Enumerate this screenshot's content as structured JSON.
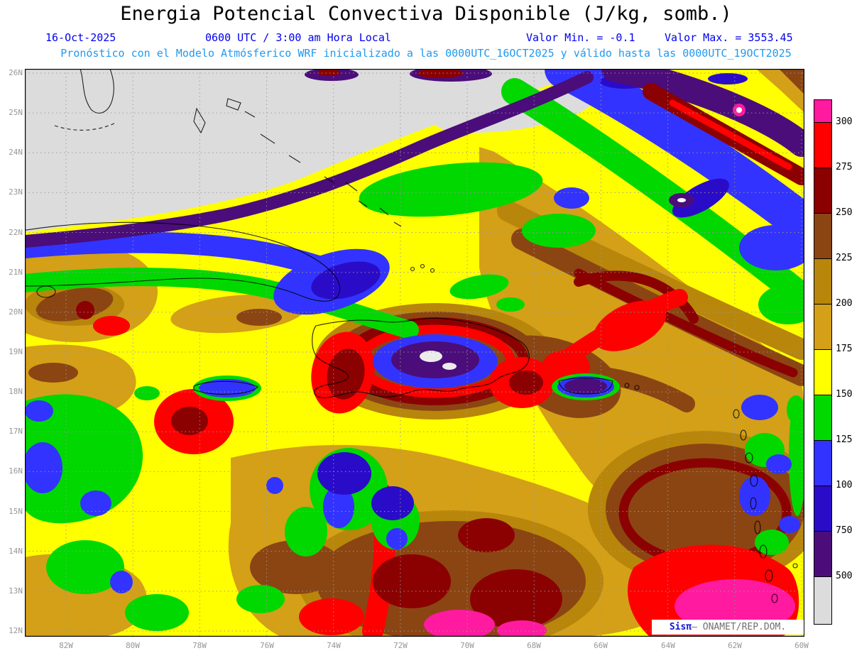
{
  "title": "Energia Potencial Convectiva Disponible (J/kg, somb.)",
  "header": {
    "date": "16-Oct-2025",
    "time": "0600 UTC / 3:00 am Hora Local",
    "min_label": "Valor Min. = -0.1",
    "max_label": "Valor Max. = 3553.45",
    "forecast_line": "Pronóstico con el Modelo Atmósferico WRF inicializado a las 0000UTC_16OCT2025 y válido hasta las 0000UTC_19OCT2025"
  },
  "map": {
    "lat_labels": [
      "26N",
      "25N",
      "24N",
      "23N",
      "22N",
      "21N",
      "20N",
      "19N",
      "18N",
      "17N",
      "16N",
      "15N",
      "14N",
      "13N",
      "12N"
    ],
    "lon_labels": [
      "82W",
      "80W",
      "78W",
      "76W",
      "74W",
      "72W",
      "70W",
      "68W",
      "66W",
      "64W",
      "62W",
      "60W"
    ]
  },
  "legend": {
    "values": [
      "3000",
      "2750",
      "2500",
      "2250",
      "2000",
      "1750",
      "1500",
      "1250",
      "1000",
      "750",
      "500"
    ],
    "colors_top_to_bottom": [
      "#ff1aa0",
      "#fe0000",
      "#8b0000",
      "#8b4513",
      "#b8860b",
      "#d4a017",
      "#ffff00",
      "#00d800",
      "#3333ff",
      "#2a0cc8",
      "#4b0d7a",
      "#dcdcdc"
    ]
  },
  "attribution": {
    "brand": "Sisπ",
    "org": "– ONAMET/REP.DOM."
  },
  "chart_data": {
    "type": "heatmap",
    "title": "Energia Potencial Convectiva Disponible (J/kg, somb.)",
    "units": "J/kg",
    "model": "WRF",
    "init_time": "0000UTC_16OCT2025",
    "valid_until": "0000UTC_19OCT2025",
    "shown_time": "16-Oct-2025 0600 UTC / 3:00 am Hora Local",
    "value_min": -0.1,
    "value_max": 3553.45,
    "lat_range": [
      "12N",
      "26N"
    ],
    "lon_range": [
      "82W",
      "60W"
    ],
    "contour_levels": [
      500,
      750,
      1000,
      1250,
      1500,
      1750,
      2000,
      2250,
      2500,
      2750,
      3000
    ],
    "palette": [
      {
        "range": "<500",
        "color": "#dcdcdc"
      },
      {
        "range": "500-750",
        "color": "#4b0d7a"
      },
      {
        "range": "750-1000",
        "color": "#2a0cc8"
      },
      {
        "range": "1000-1250",
        "color": "#3333ff"
      },
      {
        "range": "1250-1500",
        "color": "#00d800"
      },
      {
        "range": "1500-1750",
        "color": "#ffff00"
      },
      {
        "range": "1750-2000",
        "color": "#d4a017"
      },
      {
        "range": "2000-2250",
        "color": "#b8860b"
      },
      {
        "range": "2250-2500",
        "color": "#8b4513"
      },
      {
        "range": "2500-2750",
        "color": "#8b0000"
      },
      {
        "range": "2750-3000",
        "color": "#fe0000"
      },
      {
        "range": ">3000",
        "color": "#ff1aa0"
      }
    ],
    "features": [
      "CAPE < 500 J/kg (gris) sobre el Atlántico al norte de Cuba, Florida y Bahamas",
      "Franja púrpura/azul (500-1250 J/kg) a lo largo de la costa norte de Cuba y banda diagonal en el Atlántico noreste",
      "Mínimo local púrpura/blanco sobre el interior montañoso de La Española (~19N, 71W)",
      "Anillo de 2500-3000 J/kg (rojo/granate) rodeando La Española y al oeste de Haití",
      "Amplias áreas de 1500-2250 J/kg (amarillo/dorado) sobre el Caribe central",
      "Máximos > 3000 J/kg (rosado) cerca de 12-13N entre 63W y 60W y al sur de 13N, 71-69W",
      "Núcleos de 2500-2750 J/kg (granate) al sur de La Española y suroeste de Jamaica"
    ]
  }
}
